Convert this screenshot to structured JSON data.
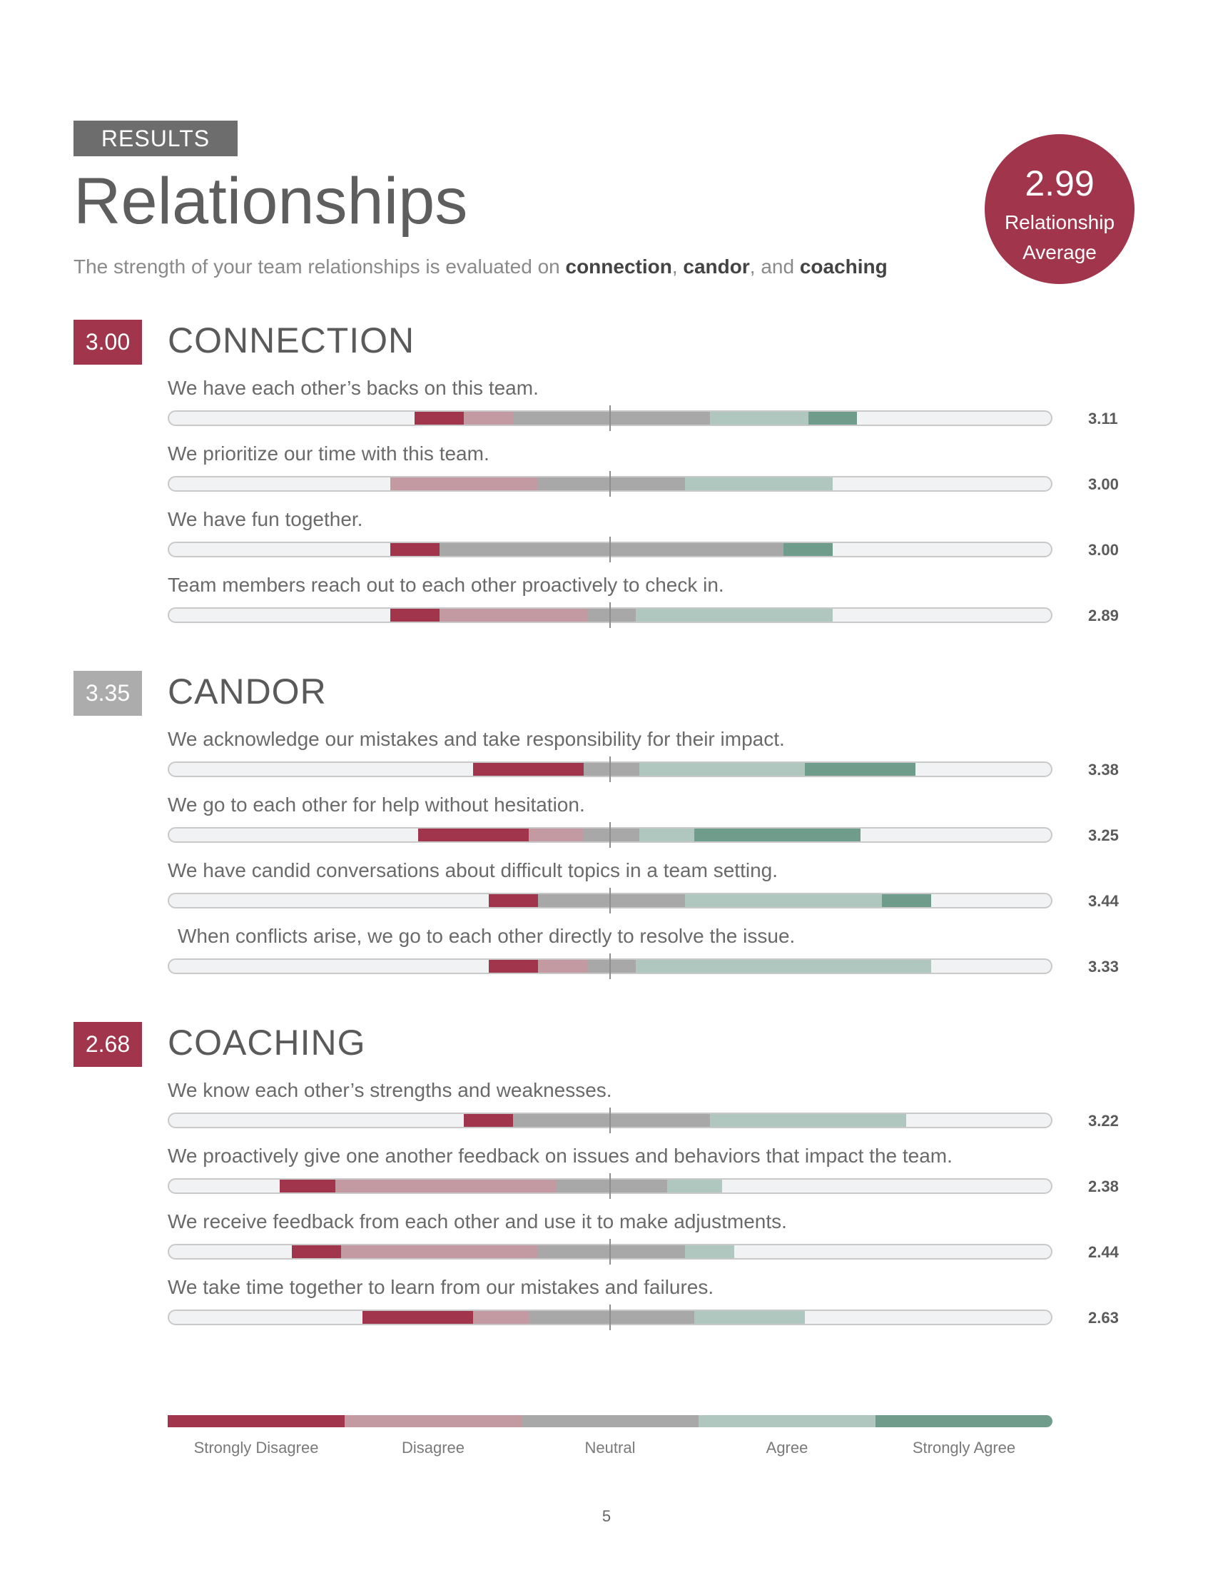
{
  "header": {
    "label": "RESULTS",
    "title": "Relationships",
    "subtitle_pre": "The strength of your team relationships is evaluated on ",
    "subtitle_b1": "connection",
    "subtitle_sep1": ", ",
    "subtitle_b2": "candor",
    "subtitle_sep2": ", and ",
    "subtitle_b3": "coaching"
  },
  "average": {
    "value": "2.99",
    "label_line1": "Relationship",
    "label_line2": "Average"
  },
  "colors": {
    "strongly_disagree": "#a0354c",
    "disagree": "#c49aa2",
    "neutral": "#a8a8a8",
    "agree": "#afc7bf",
    "strongly_agree": "#6f9c8b",
    "badge_red": "#a0354c",
    "badge_gray": "#acacac"
  },
  "sections": [
    {
      "score": "3.00",
      "title": "CONNECTION",
      "badge_color": "#a0354c",
      "items": [
        {
          "text": "We have each other’s backs on this team.",
          "score": "3.11",
          "dist": [
            0.0556,
            0.0556,
            0.2222,
            0.1111,
            0.0556
          ]
        },
        {
          "text": "We prioritize our time with this team.",
          "score": "3.00",
          "dist": [
            0,
            0.1667,
            0.1667,
            0.1667,
            0
          ]
        },
        {
          "text": "We have fun together.",
          "score": "3.00",
          "dist": [
            0.0556,
            0,
            0.3889,
            0,
            0.0556
          ]
        },
        {
          "text": "Team members reach out to each other proactively to check in.",
          "score": "2.89",
          "dist": [
            0.0556,
            0.1667,
            0.0556,
            0.2222,
            0
          ]
        }
      ]
    },
    {
      "score": "3.35",
      "title": "CANDOR",
      "badge_color": "#acacac",
      "items": [
        {
          "text": "We acknowledge our mistakes and take responsibility for their impact.",
          "score": "3.38",
          "dist": [
            0.125,
            0,
            0.0625,
            0.1875,
            0.125
          ]
        },
        {
          "text": "We go to each other for help without hesitation.",
          "score": "3.25",
          "dist": [
            0.125,
            0.0625,
            0.0625,
            0.0625,
            0.1875
          ]
        },
        {
          "text": "We have candid conversations about difficult topics in a team setting.",
          "score": "3.44",
          "dist": [
            0.0556,
            0,
            0.1667,
            0.2222,
            0.0556
          ]
        },
        {
          "text": "When conflicts arise, we go to each other directly to resolve the issue.",
          "score": "3.33",
          "dist": [
            0.0556,
            0.0556,
            0.0556,
            0.3333,
            0
          ]
        }
      ]
    },
    {
      "score": "2.68",
      "title": "COACHING",
      "badge_color": "#a0354c",
      "items": [
        {
          "text": "We know each other’s strengths and weaknesses.",
          "score": "3.22",
          "dist": [
            0.0556,
            0,
            0.2222,
            0.2222,
            0
          ]
        },
        {
          "text": "We proactively give one another feedback on issues and behaviors that impact the team.",
          "score": "2.38",
          "dist": [
            0.0625,
            0.25,
            0.125,
            0.0625,
            0
          ]
        },
        {
          "text": "We receive feedback from each other and use it to make adjustments.",
          "score": "2.44",
          "dist": [
            0.0556,
            0.2222,
            0.1667,
            0.0556,
            0
          ]
        },
        {
          "text": "We take time together to learn from our mistakes and failures.",
          "score": "2.63",
          "dist": [
            0.125,
            0.0625,
            0.1875,
            0.125,
            0
          ]
        }
      ]
    }
  ],
  "legend": [
    "Strongly Disagree",
    "Disagree",
    "Neutral",
    "Agree",
    "Strongly Agree"
  ],
  "page_number": "5"
}
